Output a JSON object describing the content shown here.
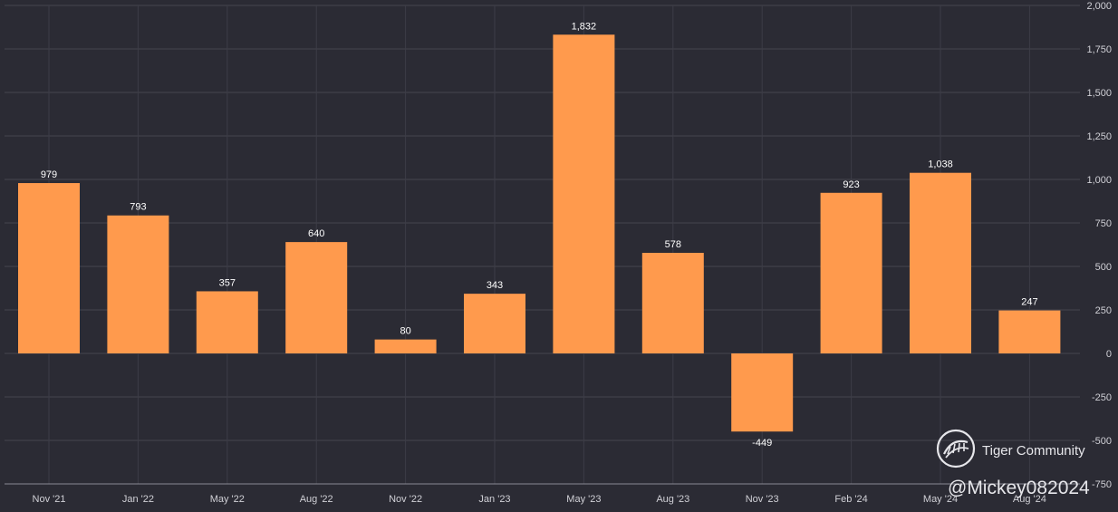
{
  "chart_data": {
    "type": "bar",
    "categories": [
      "Nov '21",
      "Jan '22",
      "May '22",
      "Aug '22",
      "Nov '22",
      "Jan '23",
      "May '23",
      "Aug '23",
      "Nov '23",
      "Feb '24",
      "May '24",
      "Aug '24"
    ],
    "values": [
      979,
      793,
      357,
      640,
      80,
      343,
      1832,
      578,
      -449,
      923,
      1038,
      247
    ],
    "data_labels": [
      "979",
      "793",
      "357",
      "640",
      "80",
      "343",
      "1,832",
      "578",
      "-449",
      "923",
      "1,038",
      "247"
    ],
    "y_ticks": [
      2000,
      1750,
      1500,
      1250,
      1000,
      750,
      500,
      250,
      0,
      -250,
      -500,
      -750
    ],
    "y_tick_labels": [
      "2,000",
      "1,750",
      "1,500",
      "1,250",
      "1,000",
      "750",
      "500",
      "250",
      "0",
      "-250",
      "-500",
      "-750"
    ],
    "ylim": [
      -750,
      2000
    ],
    "y_axis_position": "right",
    "grid": true,
    "bar_color": "#ff9a4d",
    "background_color": "#2b2b34"
  },
  "watermark": {
    "brand": "Tiger Community",
    "handle": "@Mickey082024"
  }
}
